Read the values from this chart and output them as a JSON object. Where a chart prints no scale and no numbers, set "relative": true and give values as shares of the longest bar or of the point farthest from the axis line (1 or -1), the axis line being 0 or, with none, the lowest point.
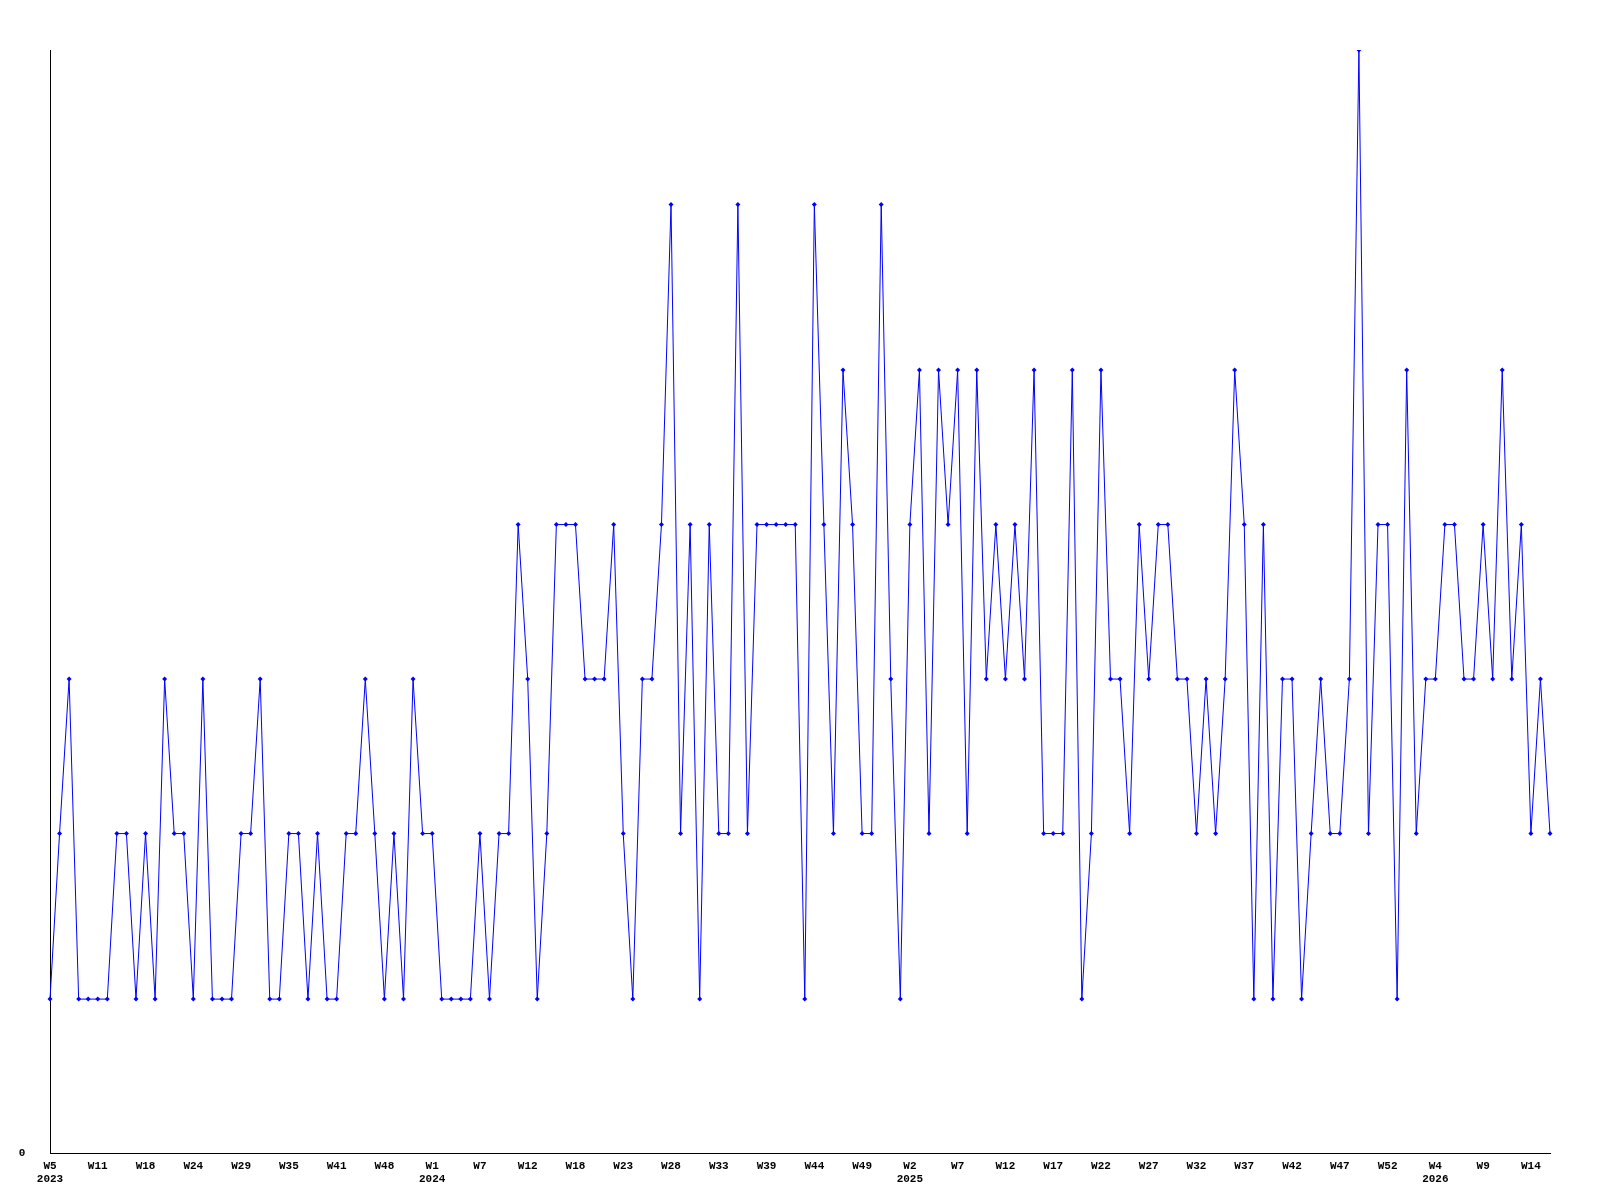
{
  "chart_data": {
    "type": "line",
    "relative": true,
    "marker": "diamond",
    "line_style": "solid",
    "grid": false,
    "legend": false,
    "categories": [
      "W5\n2023",
      null,
      null,
      null,
      null,
      "W11",
      null,
      null,
      null,
      null,
      "W18",
      null,
      null,
      null,
      null,
      "W24",
      null,
      null,
      null,
      null,
      "W29",
      null,
      null,
      null,
      null,
      "W35",
      null,
      null,
      null,
      null,
      "W41",
      null,
      null,
      null,
      null,
      "W48",
      null,
      null,
      null,
      null,
      "W1\n2024",
      null,
      null,
      null,
      null,
      "W7",
      null,
      null,
      null,
      null,
      "W12",
      null,
      null,
      null,
      null,
      "W18",
      null,
      null,
      null,
      null,
      "W23",
      null,
      null,
      null,
      null,
      "W28",
      null,
      null,
      null,
      null,
      "W33",
      null,
      null,
      null,
      null,
      "W39",
      null,
      null,
      null,
      null,
      "W44",
      null,
      null,
      null,
      null,
      "W49",
      null,
      null,
      null,
      null,
      "W2\n2025",
      null,
      null,
      null,
      null,
      "W7",
      null,
      null,
      null,
      null,
      "W12",
      null,
      null,
      null,
      null,
      "W17",
      null,
      null,
      null,
      null,
      "W22",
      null,
      null,
      null,
      null,
      "W27",
      null,
      null,
      null,
      null,
      "W32",
      null,
      null,
      null,
      null,
      "W37",
      null,
      null,
      null,
      null,
      "W42",
      null,
      null,
      null,
      null,
      "W47",
      null,
      null,
      null,
      null,
      "W52",
      null,
      null,
      null,
      null,
      "W4\n2026",
      null,
      null,
      null,
      null,
      "W9",
      null,
      null,
      null,
      null,
      "W14",
      null,
      null
    ],
    "series": [
      {
        "color": "#0000ff",
        "values": [
          0.14,
          0.29,
          0.43,
          0.14,
          0.14,
          0.14,
          0.14,
          0.29,
          0.29,
          0.14,
          0.29,
          0.14,
          0.43,
          0.29,
          0.29,
          0.14,
          0.43,
          0.14,
          0.14,
          0.14,
          0.29,
          0.29,
          0.43,
          0.14,
          0.14,
          0.29,
          0.29,
          0.14,
          0.29,
          0.14,
          0.14,
          0.29,
          0.29,
          0.43,
          0.29,
          0.14,
          0.29,
          0.14,
          0.43,
          0.29,
          0.29,
          0.14,
          0.14,
          0.14,
          0.14,
          0.29,
          0.14,
          0.29,
          0.29,
          0.57,
          0.43,
          0.14,
          0.29,
          0.57,
          0.57,
          0.57,
          0.43,
          0.43,
          0.43,
          0.57,
          0.29,
          0.14,
          0.43,
          0.43,
          0.57,
          0.86,
          0.29,
          0.57,
          0.14,
          0.57,
          0.29,
          0.29,
          0.86,
          0.29,
          0.57,
          0.57,
          0.57,
          0.57,
          0.57,
          0.14,
          0.86,
          0.57,
          0.29,
          0.71,
          0.57,
          0.29,
          0.29,
          0.86,
          0.43,
          0.14,
          0.57,
          0.71,
          0.29,
          0.71,
          0.57,
          0.71,
          0.29,
          0.71,
          0.43,
          0.57,
          0.43,
          0.57,
          0.43,
          0.71,
          0.29,
          0.29,
          0.29,
          0.71,
          0.14,
          0.29,
          0.71,
          0.43,
          0.43,
          0.29,
          0.57,
          0.43,
          0.57,
          0.57,
          0.43,
          0.43,
          0.29,
          0.43,
          0.29,
          0.43,
          0.71,
          0.57,
          0.14,
          0.57,
          0.14,
          0.43,
          0.43,
          0.14,
          0.29,
          0.43,
          0.29,
          0.29,
          0.43,
          1,
          0.29,
          0.57,
          0.57,
          0.14,
          0.71,
          0.29,
          0.43,
          0.43,
          0.57,
          0.57,
          0.43,
          0.43,
          0.57,
          0.43,
          0.71,
          0.43,
          0.57,
          0.29,
          0.43,
          0.29
        ]
      }
    ],
    "annotations": [
      "0"
    ]
  }
}
